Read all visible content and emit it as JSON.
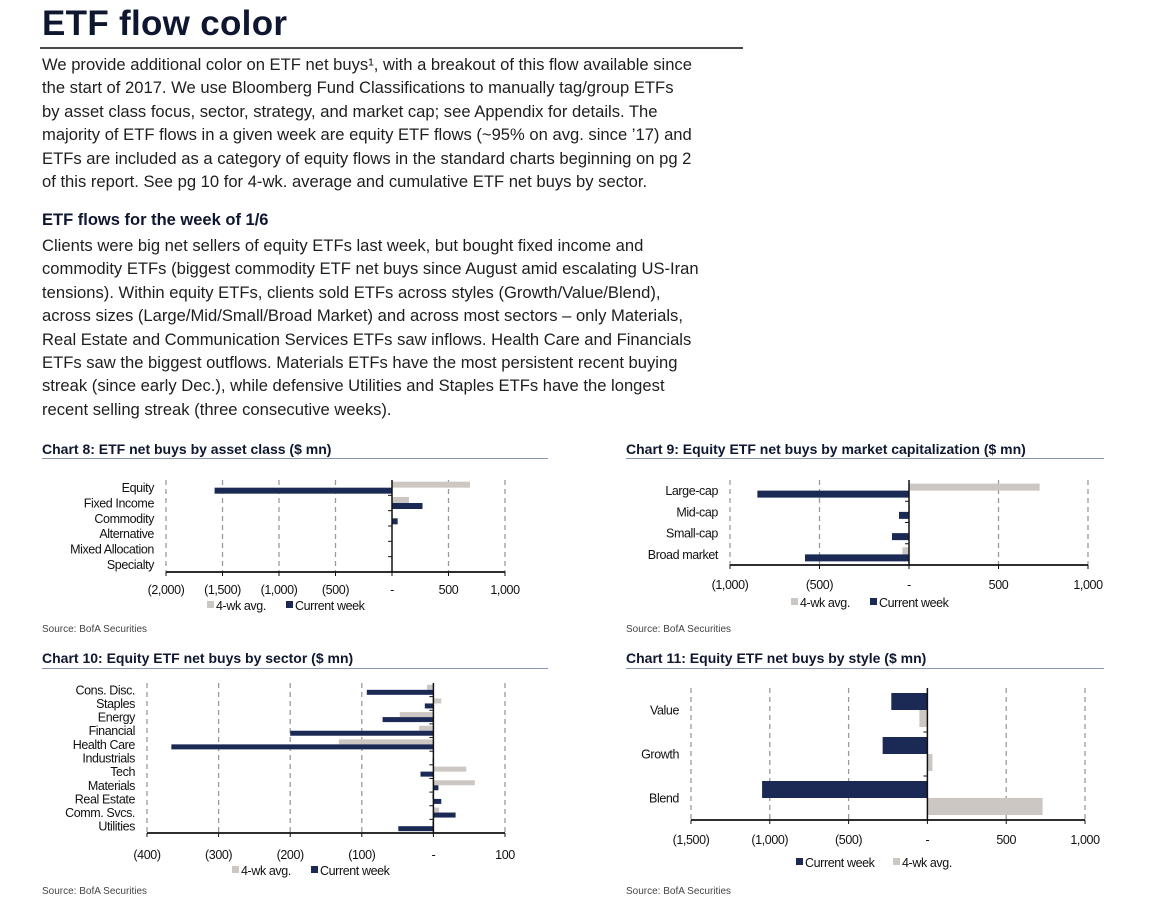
{
  "header": {
    "title": "ETF flow color"
  },
  "intro": {
    "lines": [
      "We provide additional color on ETF net buys¹, with a breakout of this flow available since",
      "the start of 2017. We use Bloomberg Fund Classifications to manually tag/group ETFs",
      "by asset class focus, sector, strategy, and market cap; see Appendix for details. The",
      "majority of ETF flows in a given week are equity ETF flows (~95% on avg. since ’17) and",
      "ETFs are included as a category of equity flows in the standard charts beginning on pg 2",
      "of this report. See pg 10 for 4-wk. average and cumulative ETF net buys by sector."
    ]
  },
  "week_section": {
    "heading": "ETF flows for the week of 1/6",
    "lines": [
      "Clients were big net sellers of equity ETFs last week, but bought fixed income and",
      "commodity ETFs (biggest commodity ETF net buys since August amid escalating US-Iran",
      "tensions). Within equity ETFs, clients sold ETFs across styles (Growth/Value/Blend),",
      "across sizes (Large/Mid/Small/Broad Market) and across most sectors – only Materials,",
      "Real Estate and Communication Services ETFs saw inflows. Health Care and Financials",
      "ETFs saw the biggest outflows. Materials ETFs have the most persistent recent buying",
      "streak (since early Dec.), while defensive Utilities and Staples ETFs have the longest",
      "recent selling streak (three consecutive weeks)."
    ]
  },
  "colors": {
    "current_week": "#1b2a55",
    "four_wk_avg": "#cdc7c3"
  },
  "chart_data": [
    {
      "type": "bar",
      "orientation": "horizontal",
      "title": "Chart 8: ETF net buys by asset class ($ mn)",
      "source": "Source: BofA Securities",
      "categories": [
        "Equity",
        "Fixed Income",
        "Commodity",
        "Alternative",
        "Mixed Allocation",
        "Specialty"
      ],
      "series": [
        {
          "name": "4-wk avg.",
          "color": "#cdc7c3",
          "values": [
            690,
            150,
            5,
            0,
            0,
            0
          ]
        },
        {
          "name": "Current week",
          "color": "#1b2a55",
          "values": [
            -1570,
            270,
            50,
            0,
            0,
            0
          ]
        }
      ],
      "bar_order": [
        "4-wk avg.",
        "Current week"
      ],
      "legend_order": [
        "4-wk avg.",
        "Current week"
      ],
      "xlim": [
        -2000,
        1000
      ],
      "xticks": [
        -2000,
        -1500,
        -1000,
        -500,
        0,
        500,
        1000
      ],
      "xtick_labels": [
        "(2,000)",
        "(1,500)",
        "(1,000)",
        "(500)",
        "-",
        "500",
        "1,000"
      ],
      "grid": "vertical dashed",
      "legend": "bottom"
    },
    {
      "type": "bar",
      "orientation": "horizontal",
      "title": "Chart 9: Equity ETF net buys by market capitalization ($ mn)",
      "source": "Source: BofA Securities",
      "categories": [
        "Large-cap",
        "Mid-cap",
        "Small-cap",
        "Broad market"
      ],
      "series": [
        {
          "name": "4-wk avg.",
          "color": "#cdc7c3",
          "values": [
            730,
            5,
            0,
            -37
          ]
        },
        {
          "name": "Current week",
          "color": "#1b2a55",
          "values": [
            -847,
            -56,
            -95,
            -581
          ]
        }
      ],
      "bar_order": [
        "4-wk avg.",
        "Current week"
      ],
      "legend_order": [
        "4-wk avg.",
        "Current week"
      ],
      "xlim": [
        -1000,
        1000
      ],
      "xticks": [
        -1000,
        -500,
        0,
        500,
        1000
      ],
      "xtick_labels": [
        "(1,000)",
        "(500)",
        "-",
        "500",
        "1,000"
      ],
      "grid": "vertical dashed",
      "legend": "bottom"
    },
    {
      "type": "bar",
      "orientation": "horizontal",
      "title": "Chart 10: Equity ETF net buys by sector ($ mn)",
      "source": "Source: BofA Securities",
      "categories": [
        "Cons. Disc.",
        "Staples",
        "Energy",
        "Financial",
        "Health Care",
        "Industrials",
        "Tech",
        "Materials",
        "Real Estate",
        "Comm. Svcs.",
        "Utilities"
      ],
      "series": [
        {
          "name": "4-wk avg.",
          "color": "#cdc7c3",
          "values": [
            -9,
            11,
            -47,
            -20,
            -132,
            0,
            46,
            58,
            -2,
            8,
            -2
          ]
        },
        {
          "name": "Current week",
          "color": "#1b2a55",
          "values": [
            -93,
            -12,
            -71,
            -200,
            -366,
            -1,
            -18,
            7,
            11,
            31,
            -49
          ]
        }
      ],
      "bar_order": [
        "4-wk avg.",
        "Current week"
      ],
      "legend_order": [
        "4-wk avg.",
        "Current week"
      ],
      "xlim": [
        -400,
        100
      ],
      "xticks": [
        -400,
        -300,
        -200,
        -100,
        0,
        100
      ],
      "xtick_labels": [
        "(400)",
        "(300)",
        "(200)",
        "(100)",
        "-",
        "100"
      ],
      "grid": "vertical dashed",
      "legend": "bottom"
    },
    {
      "type": "bar",
      "orientation": "horizontal",
      "title": "Chart 11: Equity ETF net buys by style ($ mn)",
      "source": "Source: BofA Securities",
      "categories": [
        "Value",
        "Growth",
        "Blend"
      ],
      "series": [
        {
          "name": "4-wk avg.",
          "color": "#cdc7c3",
          "values": [
            -51,
            32,
            731
          ]
        },
        {
          "name": "Current week",
          "color": "#1b2a55",
          "values": [
            -229,
            -284,
            -1049
          ]
        }
      ],
      "bar_order": [
        "Current week",
        "4-wk avg."
      ],
      "legend_order": [
        "Current week",
        "4-wk avg."
      ],
      "xlim": [
        -1500,
        1000
      ],
      "xticks": [
        -1500,
        -1000,
        -500,
        0,
        500,
        1000
      ],
      "xtick_labels": [
        "(1,500)",
        "(1,000)",
        "(500)",
        "-",
        "500",
        "1,000"
      ],
      "grid": "vertical dashed",
      "legend": "bottom"
    }
  ]
}
